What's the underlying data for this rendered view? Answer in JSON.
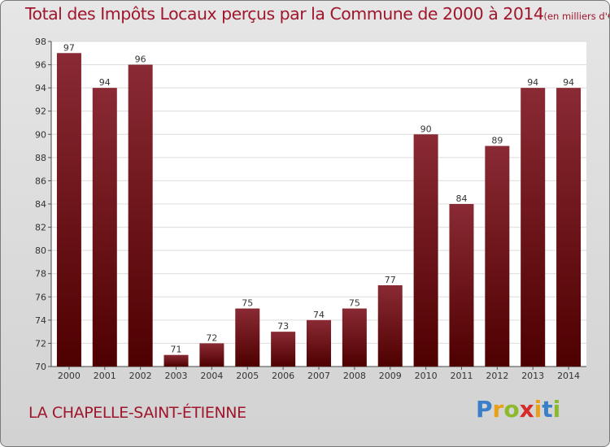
{
  "title": "Total des Impôts Locaux perçus par la Commune de 2000 à 2014",
  "title_unit": "(en milliers d'€)",
  "commune": "LA CHAPELLE-SAINT-ÉTIENNE",
  "brand": {
    "text": "Proxiti",
    "letters": [
      {
        "ch": "P",
        "color": "#3a7fc8"
      },
      {
        "ch": "r",
        "color": "#e8a019"
      },
      {
        "ch": "o",
        "color": "#8cba2a"
      },
      {
        "ch": "x",
        "color": "#d62a2a"
      },
      {
        "ch": "i",
        "color": "#e8a019"
      },
      {
        "ch": "t",
        "color": "#3a7fc8"
      },
      {
        "ch": "i",
        "color": "#8cba2a"
      }
    ]
  },
  "colors": {
    "accent": "#a0162c",
    "bar_top": "#8a2a34",
    "bar_bottom": "#4e0000"
  },
  "chart_data": {
    "type": "bar",
    "title": "Total des Impôts Locaux perçus par la Commune de 2000 à 2014",
    "xlabel": "",
    "ylabel": "",
    "ylim": [
      70,
      98
    ],
    "yticks": [
      70,
      72,
      74,
      76,
      78,
      80,
      82,
      84,
      86,
      88,
      90,
      92,
      94,
      96,
      98
    ],
    "grid": true,
    "categories": [
      "2000",
      "2001",
      "2002",
      "2003",
      "2004",
      "2005",
      "2006",
      "2007",
      "2008",
      "2009",
      "2010",
      "2011",
      "2012",
      "2013",
      "2014"
    ],
    "values": [
      97,
      94,
      96,
      71,
      72,
      75,
      73,
      74,
      75,
      77,
      90,
      84,
      89,
      94,
      94
    ]
  }
}
